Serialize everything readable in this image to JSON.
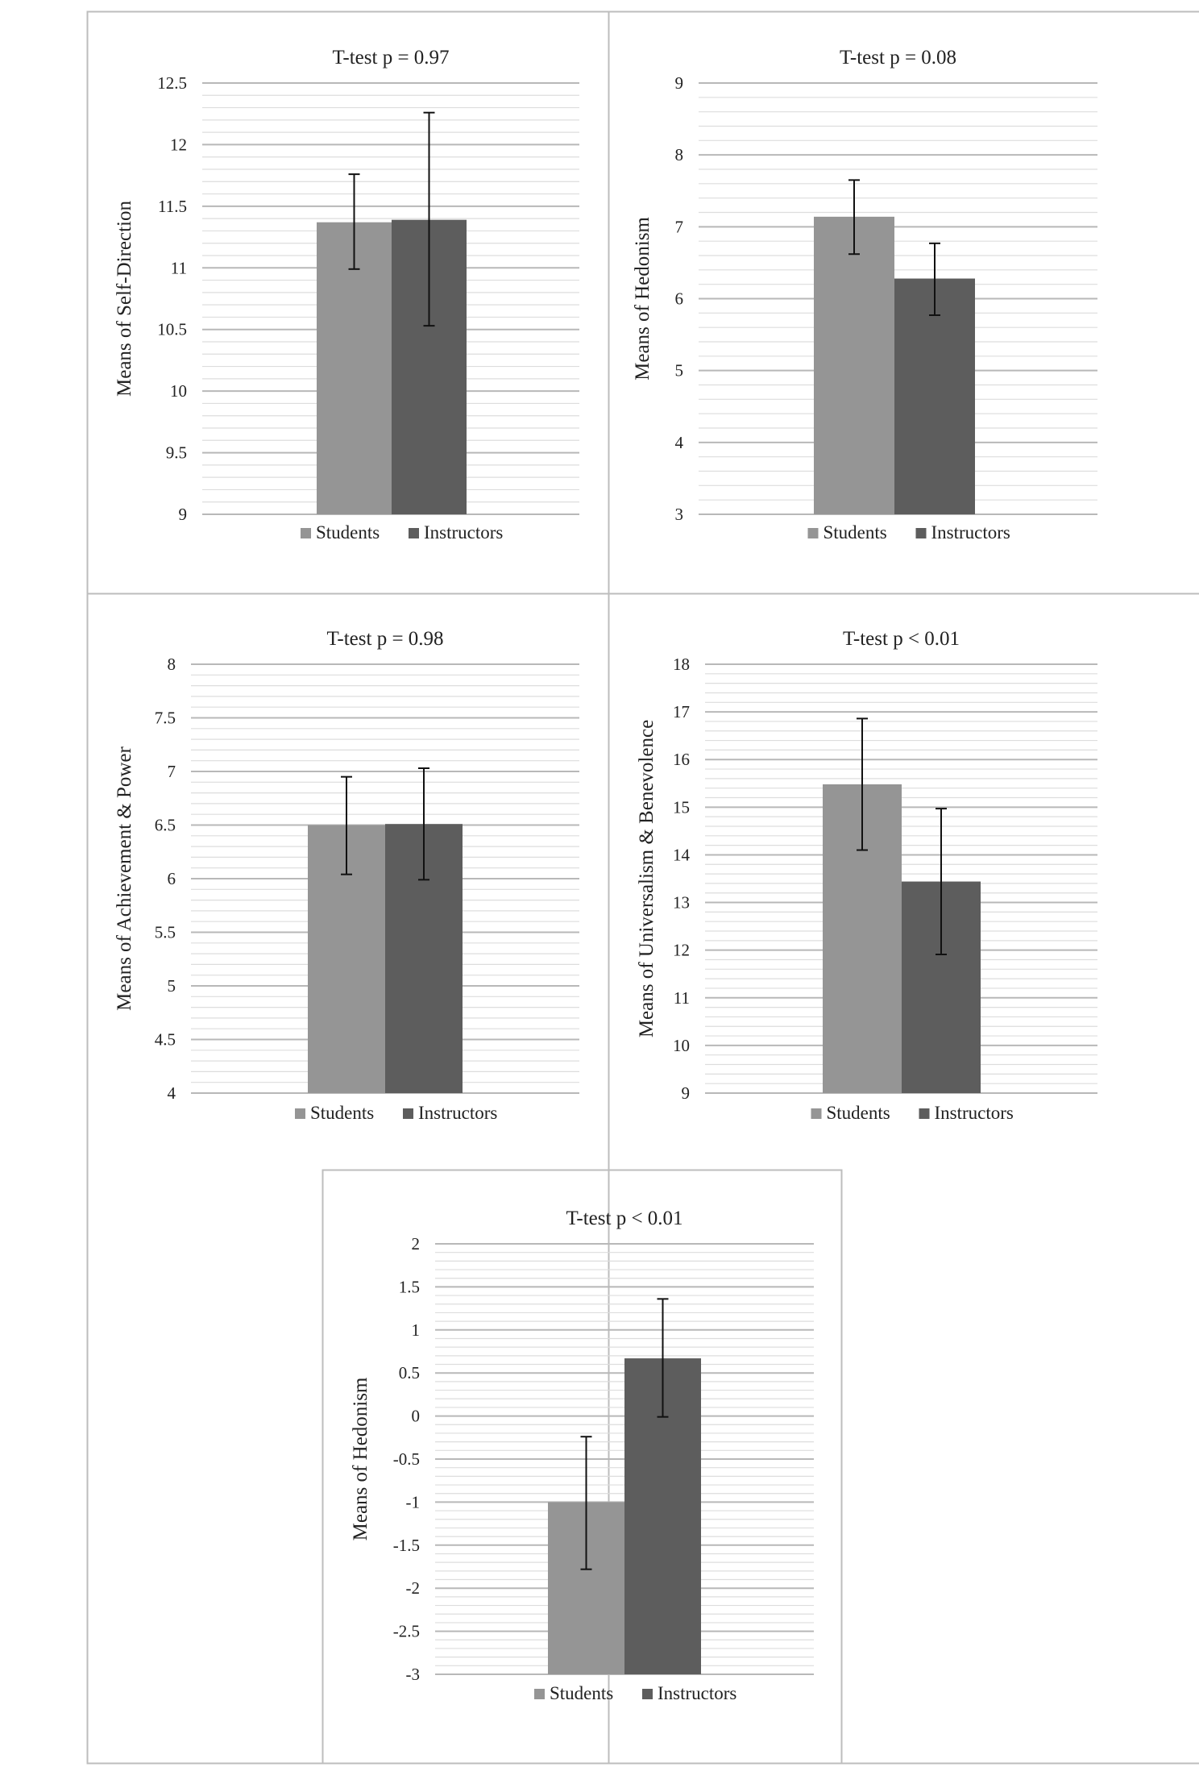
{
  "chart_data": [
    {
      "type": "bar",
      "title": "T-test p = 0.97",
      "ylabel": "Means of Self-Direction",
      "xlabel": "",
      "ylim": [
        9,
        12.5
      ],
      "yticks": [
        "9",
        "9.5",
        "10",
        "10.5",
        "11",
        "11.5",
        "12",
        "12.5"
      ],
      "grid": true,
      "legend_position": "bottom",
      "series": [
        {
          "name": "Students",
          "value": 11.37,
          "error_low": 10.99,
          "error_high": 11.76,
          "color": "#959595"
        },
        {
          "name": "Instructors",
          "value": 11.39,
          "error_low": 10.53,
          "error_high": 12.26,
          "color": "#5d5d5d"
        }
      ]
    },
    {
      "type": "bar",
      "title": "T-test p = 0.08",
      "ylabel": "Means of Hedonism",
      "xlabel": "",
      "ylim": [
        3,
        9
      ],
      "yticks": [
        "3",
        "4",
        "5",
        "6",
        "7",
        "8",
        "9"
      ],
      "grid": true,
      "legend_position": "bottom",
      "series": [
        {
          "name": "Students",
          "value": 7.14,
          "error_low": 6.62,
          "error_high": 7.65,
          "color": "#959595"
        },
        {
          "name": "Instructors",
          "value": 6.28,
          "error_low": 5.77,
          "error_high": 6.77,
          "color": "#5d5d5d"
        }
      ]
    },
    {
      "type": "bar",
      "title": "T-test p = 0.98",
      "ylabel": "Means of Achievement  & Power",
      "xlabel": "",
      "ylim": [
        4,
        8
      ],
      "yticks": [
        "4",
        "4.5",
        "5",
        "5.5",
        "6",
        "6.5",
        "7",
        "7.5",
        "8"
      ],
      "grid": true,
      "legend_position": "bottom",
      "series": [
        {
          "name": "Students",
          "value": 6.5,
          "error_low": 6.04,
          "error_high": 6.95,
          "color": "#959595"
        },
        {
          "name": "Instructors",
          "value": 6.51,
          "error_low": 5.99,
          "error_high": 7.03,
          "color": "#5d5d5d"
        }
      ]
    },
    {
      "type": "bar",
      "title": "T-test p < 0.01",
      "ylabel": "Means of Universalism & Benevolence",
      "xlabel": "",
      "ylim": [
        9,
        18
      ],
      "yticks": [
        "9",
        "10",
        "11",
        "12",
        "13",
        "14",
        "15",
        "16",
        "17",
        "18"
      ],
      "grid": true,
      "legend_position": "bottom",
      "series": [
        {
          "name": "Students",
          "value": 15.48,
          "error_low": 14.1,
          "error_high": 16.86,
          "color": "#959595"
        },
        {
          "name": "Instructors",
          "value": 13.44,
          "error_low": 11.91,
          "error_high": 14.97,
          "color": "#5d5d5d"
        }
      ]
    },
    {
      "type": "bar",
      "title": "T-test p < 0.01",
      "ylabel": "Means of Hedonism",
      "xlabel": "",
      "ylim": [
        -3,
        2
      ],
      "yticks": [
        "-3",
        "-2.5",
        "-2",
        "-1.5",
        "-1",
        "-0.5",
        "0",
        "0.5",
        "1",
        "1.5",
        "2"
      ],
      "grid": true,
      "legend_position": "bottom",
      "series": [
        {
          "name": "Students",
          "value": -1.0,
          "error_low": -1.78,
          "error_high": -0.24,
          "color": "#959595"
        },
        {
          "name": "Instructors",
          "value": 0.67,
          "error_low": -0.01,
          "error_high": 1.36,
          "color": "#5d5d5d"
        }
      ]
    }
  ]
}
